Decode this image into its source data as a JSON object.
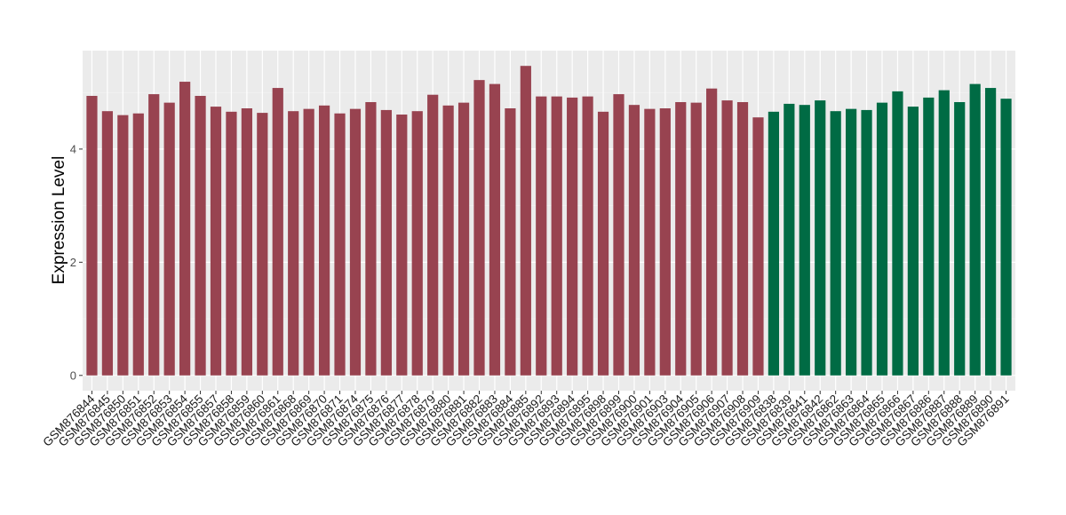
{
  "chart_data": {
    "type": "bar",
    "y_label": "Expression Level",
    "categories": [
      "GSM876844",
      "GSM876845",
      "GSM876850",
      "GSM876851",
      "GSM876852",
      "GSM876853",
      "GSM876854",
      "GSM876855",
      "GSM876857",
      "GSM876858",
      "GSM876859",
      "GSM876860",
      "GSM876861",
      "GSM876868",
      "GSM876869",
      "GSM876870",
      "GSM876871",
      "GSM876874",
      "GSM876875",
      "GSM876876",
      "GSM876877",
      "GSM876878",
      "GSM876879",
      "GSM876880",
      "GSM876881",
      "GSM876882",
      "GSM876883",
      "GSM876884",
      "GSM876885",
      "GSM876892",
      "GSM876893",
      "GSM876894",
      "GSM876895",
      "GSM876898",
      "GSM876899",
      "GSM876900",
      "GSM876901",
      "GSM876903",
      "GSM876904",
      "GSM876905",
      "GSM876906",
      "GSM876907",
      "GSM876908",
      "GSM876909",
      "GSM876838",
      "GSM876839",
      "GSM876841",
      "GSM876842",
      "GSM876862",
      "GSM876863",
      "GSM876864",
      "GSM876865",
      "GSM876866",
      "GSM876867",
      "GSM876886",
      "GSM876887",
      "GSM876888",
      "GSM876889",
      "GSM876890",
      "GSM876891"
    ],
    "values": [
      4.94,
      4.67,
      4.6,
      4.63,
      4.97,
      4.82,
      5.19,
      4.94,
      4.75,
      4.66,
      4.72,
      4.64,
      5.08,
      4.67,
      4.71,
      4.77,
      4.63,
      4.71,
      4.83,
      4.69,
      4.61,
      4.67,
      4.96,
      4.77,
      4.82,
      5.22,
      5.15,
      4.72,
      5.47,
      4.93,
      4.93,
      4.91,
      4.93,
      4.66,
      4.97,
      4.78,
      4.71,
      4.72,
      4.83,
      4.82,
      5.07,
      4.86,
      4.83,
      4.56,
      4.66,
      4.8,
      4.78,
      4.86,
      4.67,
      4.71,
      4.69,
      4.82,
      5.02,
      4.75,
      4.91,
      5.04,
      4.83,
      5.15,
      5.08,
      4.89
    ],
    "colors": [
      "#984350",
      "#984350",
      "#984350",
      "#984350",
      "#984350",
      "#984350",
      "#984350",
      "#984350",
      "#984350",
      "#984350",
      "#984350",
      "#984350",
      "#984350",
      "#984350",
      "#984350",
      "#984350",
      "#984350",
      "#984350",
      "#984350",
      "#984350",
      "#984350",
      "#984350",
      "#984350",
      "#984350",
      "#984350",
      "#984350",
      "#984350",
      "#984350",
      "#984350",
      "#984350",
      "#984350",
      "#984350",
      "#984350",
      "#984350",
      "#984350",
      "#984350",
      "#984350",
      "#984350",
      "#984350",
      "#984350",
      "#984350",
      "#984350",
      "#984350",
      "#984350",
      "#006b44",
      "#006b44",
      "#006b44",
      "#006b44",
      "#006b44",
      "#006b44",
      "#006b44",
      "#006b44",
      "#006b44",
      "#006b44",
      "#006b44",
      "#006b44",
      "#006b44",
      "#006b44",
      "#006b44",
      "#006b44"
    ],
    "ylim": [
      -0.27,
      5.74
    ],
    "yticks": [
      0,
      2,
      4
    ],
    "minor_grid": [
      1,
      3,
      5
    ],
    "grid": true
  }
}
